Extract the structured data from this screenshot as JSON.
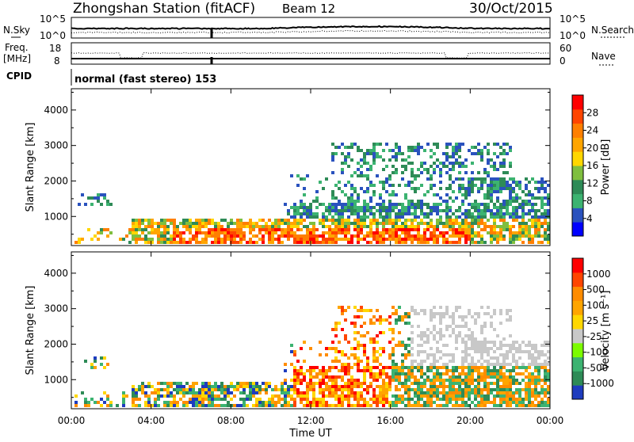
{
  "header": {
    "station": "Zhongshan Station (fitACF)",
    "beam": "Beam 12",
    "date": "30/Oct/2015"
  },
  "top_panel": {
    "left_label": "N.Sky",
    "right_label": "N.Search",
    "left_ticks": [
      "10^5",
      "10^0"
    ],
    "right_ticks": [
      "10^5",
      "10^0"
    ]
  },
  "freq_panel": {
    "left_label_line1": "Freq.",
    "left_label_line2": "[MHz]",
    "left_ticks": [
      "18",
      "8"
    ],
    "right_label": "Nave",
    "right_ticks": [
      "60",
      "0"
    ]
  },
  "cpid": {
    "label": "CPID",
    "text": "normal (fast stereo) 153"
  },
  "x_axis": {
    "label": "Time UT",
    "ticks": [
      "00:00",
      "04:00",
      "08:00",
      "12:00",
      "16:00",
      "20:00",
      "00:00"
    ]
  },
  "chart_data": [
    {
      "type": "heatmap",
      "name": "power",
      "xlabel": "Time UT",
      "ylabel": "Slant Range [km]",
      "xlim": [
        0,
        24
      ],
      "ylim": [
        180,
        4600
      ],
      "yticks": [
        "4000",
        "3000",
        "2000",
        "1000"
      ],
      "colorbar_label": "Power [dB]",
      "colorbar_ticks": [
        "28",
        "24",
        "20",
        "16",
        "12",
        "8",
        "4"
      ],
      "colors": [
        "#0000ff",
        "#2a52be",
        "#3cb371",
        "#2e8b57",
        "#7fbf3f",
        "#ffd700",
        "#ffa500",
        "#ff7f00",
        "#ff4500",
        "#ff0000"
      ]
    },
    {
      "type": "heatmap",
      "name": "velocity",
      "xlabel": "Time UT",
      "ylabel": "Slant Range [km]",
      "xlim": [
        0,
        24
      ],
      "ylim": [
        180,
        4600
      ],
      "yticks": [
        "4000",
        "3000",
        "2000",
        "1000"
      ],
      "colorbar_label": "Velocity [m s⁻¹]",
      "colorbar_ticks": [
        "1000",
        "500",
        "100",
        "25",
        "-25",
        "-100",
        "-500",
        "-1000"
      ],
      "colors": [
        "#1e3cbe",
        "#2e8b57",
        "#3cb371",
        "#7cfc00",
        "#c8c8c8",
        "#ffd700",
        "#ffa500",
        "#ff8c00",
        "#ff4500",
        "#ff0000"
      ]
    }
  ]
}
